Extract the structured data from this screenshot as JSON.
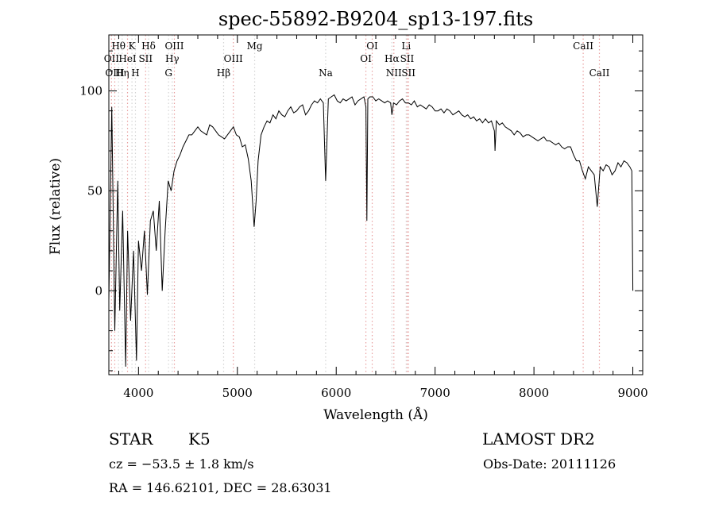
{
  "chart_data": {
    "type": "line",
    "title": "spec-55892-B9204_sp13-197.fits",
    "xlabel": "Wavelength",
    "xlabel_unit": "(Å)",
    "ylabel": "Flux (relative)",
    "xlim": [
      3700,
      9100
    ],
    "ylim": [
      -42,
      128
    ],
    "x_ticks": [
      4000,
      5000,
      6000,
      7000,
      8000,
      9000
    ],
    "y_ticks": [
      0,
      50,
      100
    ],
    "grid": false,
    "series": [
      {
        "x": [
          3700,
          3730,
          3760,
          3790,
          3810,
          3840,
          3870,
          3890,
          3920,
          3950,
          3980,
          4000,
          4030,
          4060,
          4090,
          4120,
          4150,
          4180,
          4210,
          4240,
          4270,
          4300,
          4330,
          4360,
          4390,
          4420,
          4450,
          4480,
          4510,
          4540,
          4570,
          4600,
          4630,
          4660,
          4690,
          4720,
          4750,
          4780,
          4810,
          4840,
          4870,
          4900,
          4930,
          4960,
          4990,
          5020,
          5050,
          5080,
          5110,
          5140,
          5170,
          5190,
          5210,
          5240,
          5270,
          5300,
          5330,
          5360,
          5390,
          5420,
          5450,
          5480,
          5510,
          5540,
          5570,
          5600,
          5630,
          5660,
          5690,
          5720,
          5750,
          5780,
          5810,
          5840,
          5870,
          5893,
          5920,
          5950,
          5980,
          6010,
          6040,
          6070,
          6100,
          6130,
          6160,
          6190,
          6220,
          6250,
          6280,
          6300,
          6310,
          6320,
          6340,
          6370,
          6400,
          6430,
          6460,
          6490,
          6520,
          6550,
          6563,
          6580,
          6610,
          6640,
          6670,
          6700,
          6730,
          6760,
          6790,
          6820,
          6850,
          6880,
          6910,
          6940,
          6970,
          7000,
          7030,
          7060,
          7090,
          7120,
          7150,
          7180,
          7210,
          7240,
          7270,
          7300,
          7330,
          7360,
          7390,
          7420,
          7450,
          7480,
          7510,
          7540,
          7570,
          7600,
          7606,
          7620,
          7650,
          7680,
          7710,
          7740,
          7770,
          7800,
          7830,
          7860,
          7890,
          7920,
          7950,
          7980,
          8010,
          8040,
          8070,
          8100,
          8130,
          8160,
          8190,
          8220,
          8250,
          8280,
          8310,
          8340,
          8370,
          8400,
          8430,
          8460,
          8490,
          8520,
          8550,
          8580,
          8610,
          8640,
          8670,
          8700,
          8730,
          8760,
          8790,
          8820,
          8850,
          8880,
          8910,
          8940,
          8970,
          8990,
          9000
        ],
        "y": [
          -5,
          92,
          -20,
          55,
          -10,
          40,
          -38,
          30,
          -15,
          20,
          -35,
          25,
          10,
          30,
          -2,
          35,
          40,
          20,
          45,
          0,
          30,
          55,
          50,
          60,
          65,
          68,
          72,
          75,
          78,
          78,
          80,
          82,
          80,
          79,
          78,
          83,
          82,
          80,
          78,
          77,
          76,
          78,
          80,
          82,
          78,
          77,
          72,
          73,
          66,
          55,
          32,
          45,
          65,
          78,
          82,
          85,
          84,
          88,
          86,
          90,
          88,
          87,
          90,
          92,
          89,
          90,
          92,
          93,
          88,
          90,
          93,
          95,
          94,
          96,
          94,
          55,
          96,
          97,
          98,
          95,
          94,
          96,
          95,
          96,
          97,
          93,
          95,
          96,
          97,
          92,
          35,
          96,
          97,
          97,
          95,
          96,
          95,
          94,
          95,
          94,
          88,
          94,
          93,
          95,
          96,
          94,
          94,
          93,
          95,
          92,
          93,
          92,
          91,
          93,
          92,
          90,
          90,
          91,
          89,
          91,
          90,
          88,
          89,
          90,
          88,
          87,
          88,
          86,
          87,
          85,
          86,
          84,
          86,
          84,
          85,
          80,
          70,
          85,
          83,
          84,
          82,
          81,
          80,
          78,
          80,
          79,
          77,
          78,
          78,
          77,
          76,
          75,
          76,
          77,
          75,
          75,
          74,
          73,
          74,
          72,
          71,
          72,
          72,
          68,
          65,
          65,
          60,
          56,
          62,
          60,
          58,
          42,
          62,
          60,
          63,
          62,
          58,
          60,
          64,
          62,
          65,
          64,
          62,
          60,
          0
        ]
      }
    ],
    "line_markers": [
      {
        "label": "Hθ",
        "x": 3798,
        "row": 1,
        "color": "#d3d3d3"
      },
      {
        "label": "OII",
        "x": 3727,
        "row": 2,
        "color": "#e8a0a0"
      },
      {
        "label": "OIII",
        "x": 3760,
        "row": 3,
        "color": "#e8a0a0"
      },
      {
        "label": "K",
        "x": 3934,
        "row": 1,
        "color": "#d3d3d3"
      },
      {
        "label": "HeI",
        "x": 3889,
        "row": 2,
        "color": "#e8a0a0"
      },
      {
        "label": "Hη",
        "x": 3835,
        "row": 3,
        "color": "#d3d3d3"
      },
      {
        "label": "SII",
        "x": 4072,
        "row": 2,
        "color": "#e8a0a0"
      },
      {
        "label": "H",
        "x": 3969,
        "row": 3,
        "color": "#d3d3d3"
      },
      {
        "label": "Hδ",
        "x": 4102,
        "row": 1,
        "color": "#d3d3d3"
      },
      {
        "label": "OIII",
        "x": 4363,
        "row": 1,
        "color": "#e8a0a0"
      },
      {
        "label": "Hγ",
        "x": 4341,
        "row": 2,
        "color": "#d3d3d3"
      },
      {
        "label": "G",
        "x": 4304,
        "row": 3,
        "color": "#d3d3d3"
      },
      {
        "label": "OIII",
        "x": 4959,
        "row": 2,
        "color": "#e8a0a0"
      },
      {
        "label": "Hβ",
        "x": 4861,
        "row": 3,
        "color": "#d3d3d3"
      },
      {
        "label": "Mg",
        "x": 5175,
        "row": 1,
        "color": "#d3d3d3"
      },
      {
        "label": "Na",
        "x": 5893,
        "row": 3,
        "color": "#d3d3d3"
      },
      {
        "label": "OI",
        "x": 6364,
        "row": 1,
        "color": "#e8a0a0"
      },
      {
        "label": "OI",
        "x": 6300,
        "row": 2,
        "color": "#e8a0a0"
      },
      {
        "label": "Hα",
        "x": 6563,
        "row": 2,
        "color": "#d3d3d3"
      },
      {
        "label": "NII",
        "x": 6583,
        "row": 3,
        "color": "#e8a0a0"
      },
      {
        "label": "Li",
        "x": 6708,
        "row": 1,
        "color": "#d3d3d3"
      },
      {
        "label": "SII",
        "x": 6717,
        "row": 2,
        "color": "#e8a0a0"
      },
      {
        "label": "SII",
        "x": 6731,
        "row": 3,
        "color": "#e8a0a0"
      },
      {
        "label": "CaII",
        "x": 8498,
        "row": 1,
        "color": "#e8a0a0"
      },
      {
        "label": "CaII",
        "x": 8662,
        "row": 3,
        "color": "#e8a0a0"
      }
    ]
  },
  "info": {
    "object_class": "STAR",
    "subclass": "K5",
    "survey": "LAMOST DR2",
    "cz": "cz = −53.5 ± 1.8 km/s",
    "obs_date": "Obs-Date: 20111126",
    "coords": "RA = 146.62101, DEC =  28.63031"
  }
}
